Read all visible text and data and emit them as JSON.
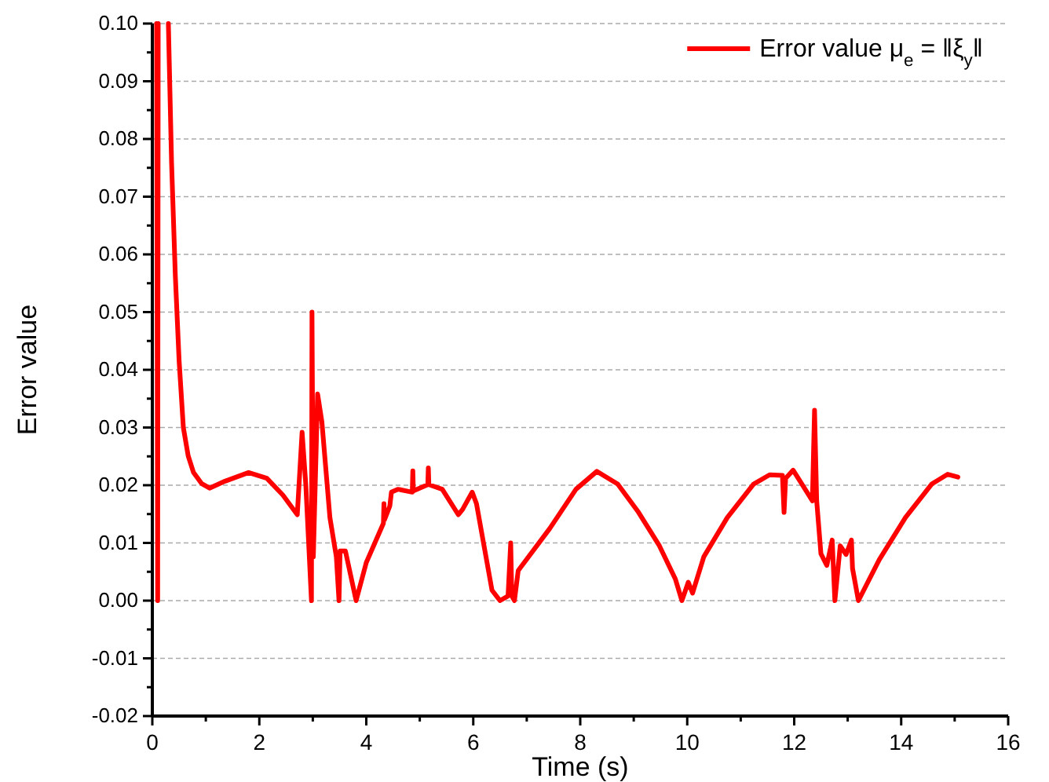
{
  "chart_data": {
    "type": "line",
    "xlabel": "Time (s)",
    "ylabel": "Error value",
    "xlim": [
      0,
      16
    ],
    "ylim": [
      -0.02,
      0.1
    ],
    "xticks": [
      0,
      {
        "value": 1,
        "label": null
      },
      2,
      {
        "value": 3,
        "label": null
      },
      4,
      {
        "value": 5,
        "label": null
      },
      6,
      {
        "value": 7,
        "label": null
      },
      8,
      {
        "value": 9,
        "label": null
      },
      10,
      {
        "value": 11,
        "label": null
      },
      12,
      {
        "value": 13,
        "label": null
      },
      14,
      {
        "value": 15,
        "label": null
      },
      16
    ],
    "yticks": [
      {
        "value": -0.02,
        "label": "-0.02"
      },
      {
        "value": -0.015,
        "label": null
      },
      {
        "value": -0.01,
        "label": "-0.01"
      },
      {
        "value": -0.005,
        "label": null
      },
      {
        "value": 0,
        "label": "0.00"
      },
      {
        "value": 0.005,
        "label": null
      },
      {
        "value": 0.01,
        "label": "0.01"
      },
      {
        "value": 0.015,
        "label": null
      },
      {
        "value": 0.02,
        "label": "0.02"
      },
      {
        "value": 0.025,
        "label": null
      },
      {
        "value": 0.03,
        "label": "0.03"
      },
      {
        "value": 0.035,
        "label": null
      },
      {
        "value": 0.04,
        "label": "0.04"
      },
      {
        "value": 0.045,
        "label": null
      },
      {
        "value": 0.05,
        "label": "0.05"
      },
      {
        "value": 0.055,
        "label": null
      },
      {
        "value": 0.06,
        "label": "0.06"
      },
      {
        "value": 0.065,
        "label": null
      },
      {
        "value": 0.07,
        "label": "0.07"
      },
      {
        "value": 0.075,
        "label": null
      },
      {
        "value": 0.08,
        "label": "0.08"
      },
      {
        "value": 0.085,
        "label": null
      },
      {
        "value": 0.09,
        "label": "0.09"
      },
      {
        "value": 0.095,
        "label": null
      },
      {
        "value": 0.1,
        "label": "0.10"
      }
    ],
    "grid": "y",
    "legend": "top right",
    "line_style": "solid",
    "marker": "none",
    "series": [
      {
        "name": "Error value  μ$_{e}$ = ‖ξ$_{y}$‖",
        "color": "#ff0000",
        "x": [
          0.08,
          0.1,
          0.11,
          0.2,
          0.3,
          0.36,
          0.43,
          0.5,
          0.58,
          0.67,
          0.77,
          0.92,
          1.07,
          1.36,
          1.8,
          2.14,
          2.44,
          2.71,
          2.8,
          2.87,
          2.975,
          2.985,
          3.01,
          3.09,
          3.17,
          3.32,
          3.44,
          3.49,
          3.51,
          3.61,
          3.81,
          4.0,
          4.32,
          4.33,
          4.34,
          4.44,
          4.47,
          4.59,
          4.86,
          4.87,
          4.88,
          5.15,
          5.16,
          5.17,
          5.42,
          5.72,
          5.8,
          5.98,
          6.06,
          6.35,
          6.5,
          6.65,
          6.7,
          6.72,
          6.77,
          6.84,
          7.43,
          7.92,
          8.31,
          8.7,
          9.09,
          9.48,
          9.78,
          9.9,
          10.02,
          10.1,
          10.31,
          10.75,
          11.24,
          11.54,
          11.78,
          11.81,
          11.84,
          11.98,
          12.34,
          12.38,
          12.42,
          12.5,
          12.61,
          12.71,
          12.76,
          12.86,
          12.97,
          13.07,
          13.09,
          13.2,
          13.59,
          14.08,
          14.57,
          14.87,
          15.06
        ],
        "values": [
          0.1,
          0,
          0.1,
          null,
          0.1,
          0.0758,
          0.0563,
          0.0417,
          0.03,
          0.0251,
          0.0222,
          0.0203,
          0.0195,
          0.0207,
          0.0222,
          0.0212,
          0.0183,
          0.0149,
          0.0292,
          0.02,
          0,
          0.05,
          0.0076,
          0.0358,
          0.031,
          0.0144,
          0.0076,
          0,
          0.0086,
          0.0086,
          0,
          0.0066,
          0.0134,
          0.0168,
          0.014,
          0.0164,
          0.0188,
          0.0193,
          0.0188,
          0.0225,
          0.019,
          0.0201,
          0.023,
          0.0201,
          0.0193,
          0.0149,
          0.0158,
          0.0188,
          0.0168,
          0.0018,
          0,
          0.0008,
          0.01,
          0.0008,
          0,
          0.0052,
          0.0125,
          0.0193,
          0.0224,
          0.0202,
          0.0153,
          0.0095,
          0.0037,
          0,
          0.0032,
          0.0013,
          0.0076,
          0.0144,
          0.0202,
          0.0218,
          0.0217,
          0.0153,
          0.0212,
          0.0226,
          0.0173,
          0.033,
          0.0173,
          0.0081,
          0.0061,
          0.0105,
          0,
          0.0095,
          0.008,
          0.0105,
          0.0056,
          0,
          0.0071,
          0.0144,
          0.0202,
          0.0219,
          0.0214
        ]
      }
    ]
  }
}
